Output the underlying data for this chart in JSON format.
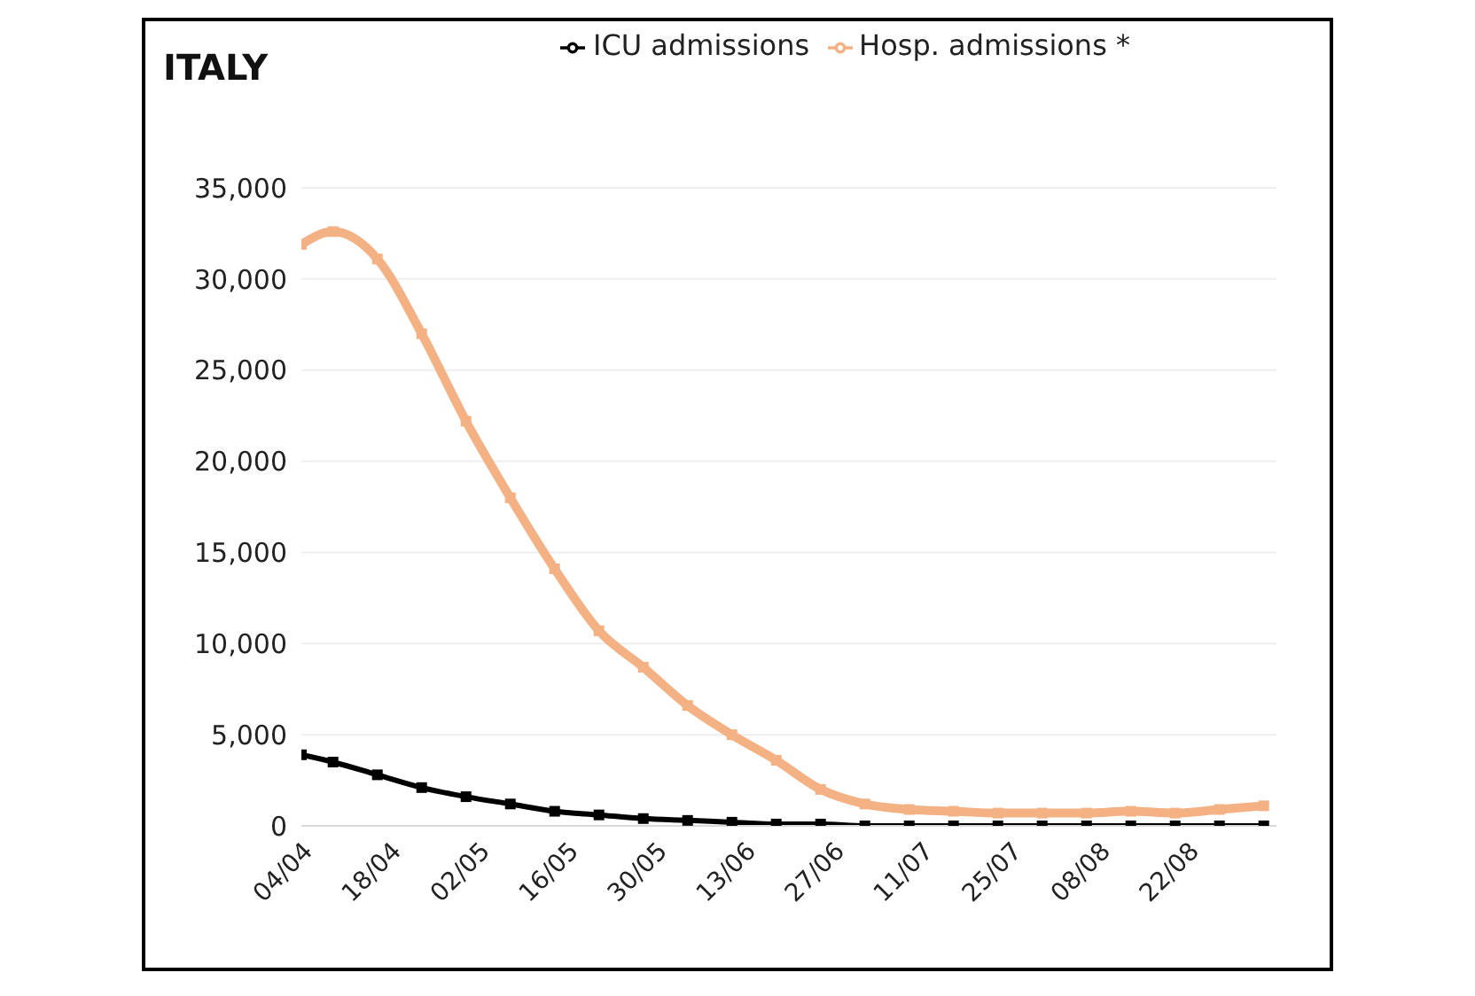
{
  "chart_data": {
    "type": "line",
    "title": "ITALY",
    "x": [
      "--04-04",
      "--04-09",
      "--04-16",
      "--04-23",
      "--04-30",
      "--05-07",
      "--05-14",
      "--05-21",
      "--05-28",
      "--06-04",
      "--06-11",
      "--06-18",
      "--06-25",
      "--07-02",
      "--07-09",
      "--07-16",
      "--07-23",
      "--07-30",
      "--08-06",
      "--08-13",
      "--08-20",
      "--08-27",
      "--09-03"
    ],
    "series": [
      {
        "name": "ICU admissions",
        "color": "#000000",
        "values": [
          3900,
          3500,
          2800,
          2100,
          1600,
          1200,
          800,
          600,
          400,
          300,
          200,
          100,
          100,
          0,
          0,
          0,
          0,
          0,
          0,
          0,
          0,
          0,
          0
        ]
      },
      {
        "name": "Hosp. admissions *",
        "color": "#f4b183",
        "values": [
          31900,
          32600,
          31100,
          27000,
          22200,
          18000,
          14100,
          10700,
          8700,
          6600,
          5000,
          3600,
          2000,
          1200,
          900,
          800,
          700,
          700,
          700,
          800,
          700,
          900,
          1100
        ]
      }
    ],
    "xlim": [
      "--04-04",
      "--09-05"
    ],
    "xticks": [
      {
        "value": "--04-04",
        "label": "04/04"
      },
      {
        "value": "--04-18",
        "label": "18/04"
      },
      {
        "value": "--05-02",
        "label": "02/05"
      },
      {
        "value": "--05-16",
        "label": "16/05"
      },
      {
        "value": "--05-30",
        "label": "30/05"
      },
      {
        "value": "--06-13",
        "label": "13/06"
      },
      {
        "value": "--06-27",
        "label": "27/06"
      },
      {
        "value": "--07-11",
        "label": "11/07"
      },
      {
        "value": "--07-25",
        "label": "25/07"
      },
      {
        "value": "--08-08",
        "label": "08/08"
      },
      {
        "value": "--08-22",
        "label": "22/08"
      }
    ],
    "ylim": [
      0,
      35000
    ],
    "yticks": [
      0,
      {
        "value": 5000,
        "label": "5,000"
      },
      {
        "value": 10000,
        "label": "10,000"
      },
      {
        "value": 15000,
        "label": "15,000"
      },
      {
        "value": 20000,
        "label": "20,000"
      },
      {
        "value": 25000,
        "label": "25,000"
      },
      {
        "value": 30000,
        "label": "30,000"
      },
      {
        "value": 35000,
        "label": "35,000"
      }
    ],
    "grid": "y",
    "legend": "top",
    "marker": "square",
    "line_style": "solid"
  }
}
